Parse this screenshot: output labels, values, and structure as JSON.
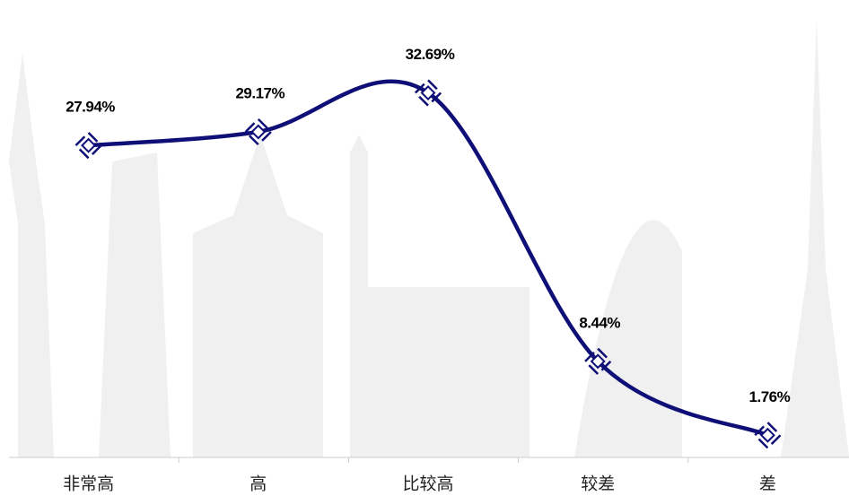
{
  "chart_data": {
    "type": "line",
    "categories": [
      "非常高",
      "高",
      "比较高",
      "较差",
      "差"
    ],
    "values": [
      27.94,
      29.17,
      32.69,
      8.44,
      1.76
    ],
    "value_labels": [
      "27.94%",
      "29.17%",
      "32.69%",
      "8.44%",
      "1.76%"
    ],
    "color": "#0f0f78",
    "ylim": [
      0,
      38
    ]
  }
}
